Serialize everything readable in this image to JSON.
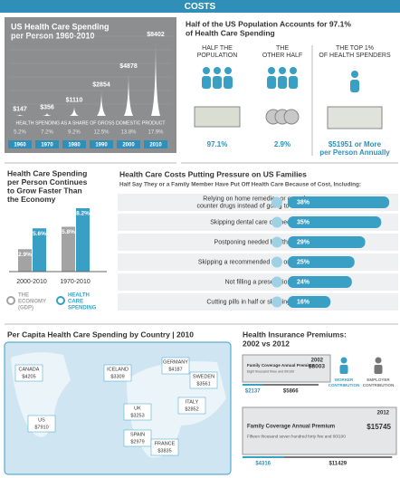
{
  "header": "COSTS",
  "spending": {
    "title": [
      "US Health Care Spending",
      "per Person 1960-2010"
    ],
    "years": [
      "1960",
      "1970",
      "1980",
      "1990",
      "2000",
      "2010"
    ],
    "values": [
      147,
      356,
      1110,
      2854,
      4878,
      8402
    ],
    "value_labels": [
      "$147",
      "$356",
      "$1110",
      "$2854",
      "$4878",
      "$8402"
    ],
    "gdp_caption": "HEALTH SPENDING AS A SHARE OF GROSS DOMESTIC PRODUCT",
    "gdp_shares": [
      "5.2%",
      "7.2%",
      "9.2%",
      "12.5%",
      "13.8%",
      "17.9%"
    ]
  },
  "population": {
    "title": [
      "Half of the US Population Accounts for 97.1%",
      "of Health Care Spending"
    ],
    "groups": [
      {
        "label": [
          "HALF THE",
          "POPULATION"
        ],
        "value": [
          "97.1%"
        ]
      },
      {
        "label": [
          "THE",
          "OTHER HALF"
        ],
        "value": [
          "2.9%"
        ]
      },
      {
        "label": [
          "THE TOP 1%",
          "OF HEALTH SPENDERS"
        ],
        "value": [
          "$51951 or More",
          "per Person Annually"
        ]
      }
    ]
  },
  "growth": {
    "title": [
      "Health Care Spending",
      "per Person Continues",
      "to Grow Faster Than",
      "the Economy"
    ],
    "periods": [
      "2000-2010",
      "1970-2010"
    ],
    "series": [
      {
        "name": [
          "THE",
          "ECONOMY",
          "(GDP)"
        ],
        "color": "#a3a3a3",
        "values": [
          2.9,
          5.8
        ],
        "value_labels": [
          "2.9%",
          "5.8%"
        ]
      },
      {
        "name": [
          "HEALTH",
          "CARE",
          "SPENDING"
        ],
        "color": "#3a9fc5",
        "values": [
          5.6,
          8.2
        ],
        "value_labels": [
          "5.6%",
          "8.2%"
        ]
      }
    ]
  },
  "pressure": {
    "title": "Health Care Costs Putting Pressure on US Families",
    "subtitle": "Half Say They or a Family Member Have Put Off Health Care Because of Cost, Including:",
    "items": [
      {
        "label": [
          "Relying on home remedies or over-the-",
          "counter drugs instead of going to the doctor"
        ],
        "value": 38,
        "value_label": "38%"
      },
      {
        "label": [
          "Skipping dental care or check-ups"
        ],
        "value": 35,
        "value_label": "35%"
      },
      {
        "label": [
          "Postponing needed health care"
        ],
        "value": 29,
        "value_label": "29%"
      },
      {
        "label": [
          "Skipping a recommended test or treatment"
        ],
        "value": 25,
        "value_label": "25%"
      },
      {
        "label": [
          "Not filling a prescription"
        ],
        "value": 24,
        "value_label": "24%"
      },
      {
        "label": [
          "Cutting pills in half or skipping doses"
        ],
        "value": 16,
        "value_label": "16%"
      }
    ]
  },
  "map": {
    "title": "Per Capita Health Care Spending by Country | 2010",
    "countries": [
      {
        "name": "CANADA",
        "value": "$4205"
      },
      {
        "name": "US",
        "value": "$7910"
      },
      {
        "name": "ICELAND",
        "value": "$3309"
      },
      {
        "name": "UK",
        "value": "$3253"
      },
      {
        "name": "GERMANY",
        "value": "$4187"
      },
      {
        "name": "SWEDEN",
        "value": "$3561"
      },
      {
        "name": "ITALY",
        "value": "$2852"
      },
      {
        "name": "SPAIN",
        "value": "$2979"
      },
      {
        "name": "FRANCE",
        "value": "$3835"
      }
    ]
  },
  "premiums": {
    "title": [
      "Health Insurance Premiums:",
      "2002 vs 2012"
    ],
    "legend": [
      [
        "WORKER",
        "CONTRIBUTION"
      ],
      [
        "EMPLOYER",
        "CONTRIBUTION"
      ]
    ],
    "checks": [
      {
        "year": "2002",
        "heading": "Family Coverage Annual Premium",
        "amount": "$8003",
        "words": "Eight thousand three and 00/100",
        "worker": 2137,
        "employer": 5866,
        "worker_label": "$2137",
        "employer_label": "$5866"
      },
      {
        "year": "2012",
        "heading": "Family Coverage Annual Premium",
        "amount": "$15745",
        "words": "Fifteen thousand seven hundred forty five and 00/100",
        "worker": 4316,
        "employer": 11429,
        "worker_label": "$4316",
        "employer_label": "$11429"
      }
    ]
  }
}
